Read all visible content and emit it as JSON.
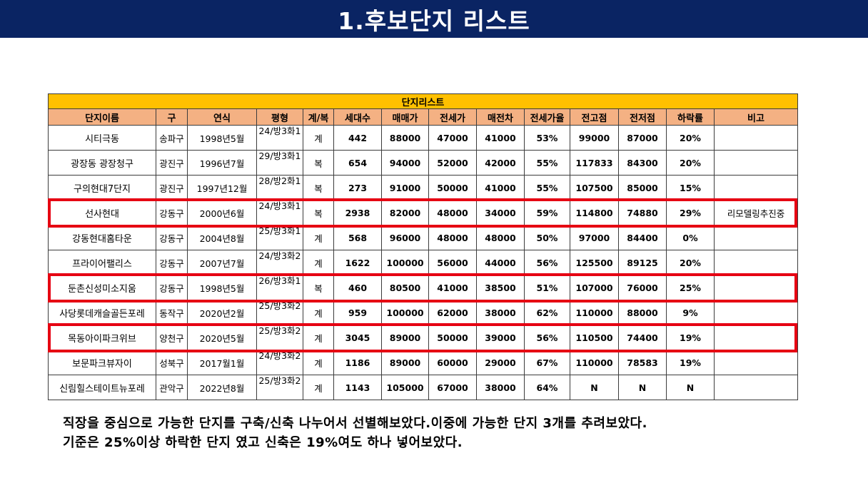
{
  "header": {
    "title": "1.후보단지 리스트"
  },
  "table": {
    "title": "단지리스트",
    "columns": [
      "단지이름",
      "구",
      "연식",
      "평형",
      "계/복",
      "세대수",
      "매매가",
      "전세가",
      "매전차",
      "전세가율",
      "전고점",
      "전저점",
      "하락률",
      "비고"
    ],
    "rows": [
      [
        "시티극동",
        "송파구",
        "1998년5월",
        "24/방3화1",
        "계",
        "442",
        "88000",
        "47000",
        "41000",
        "53%",
        "99000",
        "87000",
        "20%",
        ""
      ],
      [
        "광장동 광장청구",
        "광진구",
        "1996년7월",
        "29/방3화1",
        "복",
        "654",
        "94000",
        "52000",
        "42000",
        "55%",
        "117833",
        "84300",
        "20%",
        ""
      ],
      [
        "구의현대7단지",
        "광진구",
        "1997년12월",
        "28/방2화1",
        "복",
        "273",
        "91000",
        "50000",
        "41000",
        "55%",
        "107500",
        "85000",
        "15%",
        ""
      ],
      [
        "선사현대",
        "강동구",
        "2000년6월",
        "24/방3화1",
        "복",
        "2938",
        "82000",
        "48000",
        "34000",
        "59%",
        "114800",
        "74880",
        "29%",
        "리모델링추진중"
      ],
      [
        "강동현대홈타운",
        "강동구",
        "2004년8월",
        "25/방3화1",
        "계",
        "568",
        "96000",
        "48000",
        "48000",
        "50%",
        "97000",
        "84400",
        "0%",
        ""
      ],
      [
        "프라이어팰리스",
        "강동구",
        "2007년7월",
        "24/방3화2",
        "계",
        "1622",
        "100000",
        "56000",
        "44000",
        "56%",
        "125500",
        "89125",
        "20%",
        ""
      ],
      [
        "둔촌신성미소지움",
        "강동구",
        "1998년5월",
        "26/방3화1",
        "복",
        "460",
        "80500",
        "41000",
        "38500",
        "51%",
        "107000",
        "76000",
        "25%",
        ""
      ],
      [
        "사당롯데캐슬골든포레",
        "동작구",
        "2020년2월",
        "25/방3화2",
        "계",
        "959",
        "100000",
        "62000",
        "38000",
        "62%",
        "110000",
        "88000",
        "9%",
        ""
      ],
      [
        "목동아이파크위브",
        "양천구",
        "2020년5월",
        "25/방3화2",
        "계",
        "3045",
        "89000",
        "50000",
        "39000",
        "56%",
        "110500",
        "74400",
        "19%",
        ""
      ],
      [
        "보문파크뷰자이",
        "성북구",
        "2017월1월",
        "24/방3화2",
        "계",
        "1186",
        "89000",
        "60000",
        "29000",
        "67%",
        "110000",
        "78583",
        "19%",
        ""
      ],
      [
        "신림힐스테이트뉴포레",
        "관악구",
        "2022년8월",
        "25/방3화2",
        "계",
        "1143",
        "105000",
        "67000",
        "38000",
        "64%",
        "N",
        "N",
        "N",
        ""
      ]
    ]
  },
  "summary": {
    "line1": "직장을 중심으로 가능한 단지를 구축/신축 나누어서 선별해보았다.이중에 가능한 단지 3개를 추려보았다.",
    "line2": "기준은 25%이상 하락한 단지 였고 신축은 19%여도 하나 넣어보았다."
  },
  "colors": {
    "header_bg": "#0a2463",
    "title_row": "#ffc000",
    "column_header": "#f4b183",
    "highlight": "#e60012"
  }
}
